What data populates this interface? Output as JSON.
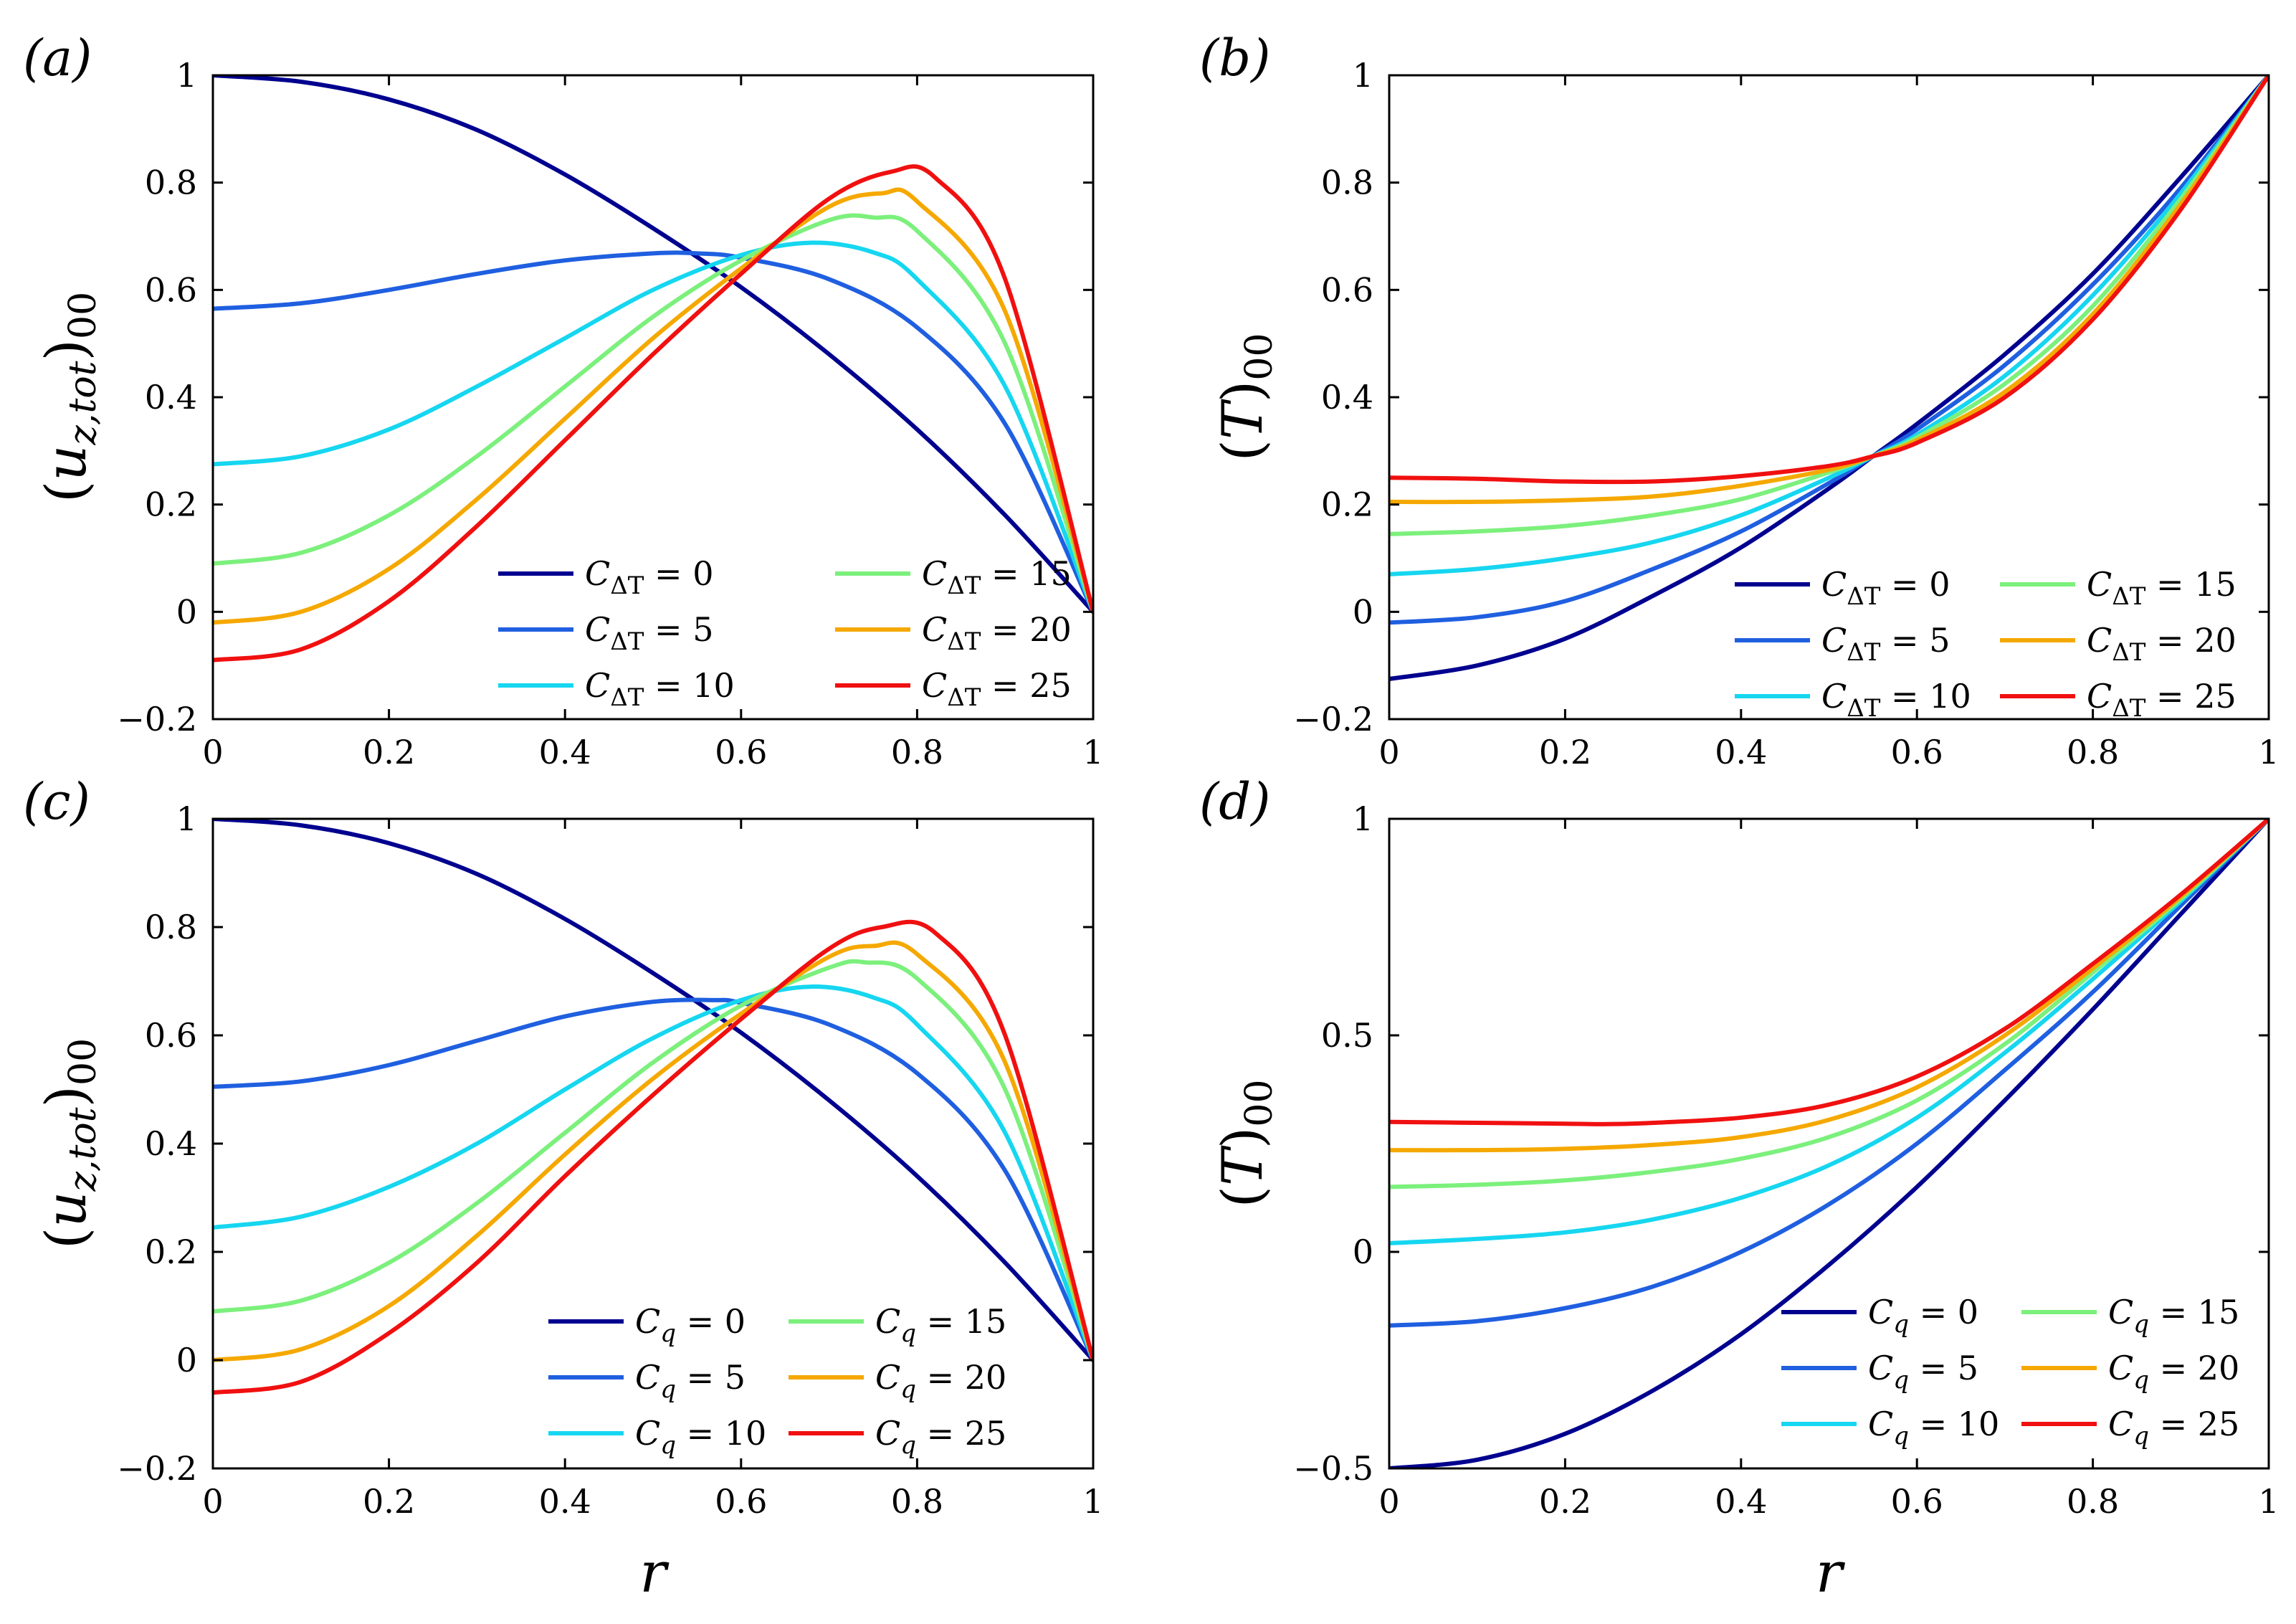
{
  "chart_data": [
    {
      "type": "line",
      "panel": "(a)",
      "xlabel": "",
      "ylabel": "(u_z,tot)00",
      "ylabel_parts": {
        "open": "(u",
        "sub": "z,tot",
        "close": ")",
        "sub2": "00"
      },
      "xlim": [
        0,
        1
      ],
      "ylim": [
        -0.2,
        1
      ],
      "xticks": [
        "0",
        "0.2",
        "0.4",
        "0.6",
        "0.8",
        "1"
      ],
      "yticks": [
        "−0.2",
        "0",
        "0.2",
        "0.4",
        "0.6",
        "0.8",
        "1"
      ],
      "legend_location": "lower-right",
      "legend_prefix": "C",
      "legend_sub": "ΔT",
      "series": [
        {
          "name": "0",
          "color": "#00008f",
          "x": [
            0,
            0.1,
            0.2,
            0.3,
            0.4,
            0.5,
            0.6,
            0.7,
            0.8,
            0.9,
            1.0
          ],
          "values": [
            1.0,
            0.988,
            0.955,
            0.898,
            0.815,
            0.715,
            0.605,
            0.48,
            0.34,
            0.18,
            0.0
          ]
        },
        {
          "name": "5",
          "color": "#1f5fe0",
          "x": [
            0,
            0.1,
            0.2,
            0.3,
            0.4,
            0.5,
            0.55,
            0.6,
            0.7,
            0.8,
            0.9,
            1.0
          ],
          "values": [
            0.565,
            0.575,
            0.6,
            0.63,
            0.655,
            0.668,
            0.668,
            0.66,
            0.62,
            0.53,
            0.35,
            0.0
          ]
        },
        {
          "name": "10",
          "color": "#16d6f0",
          "x": [
            0,
            0.1,
            0.2,
            0.3,
            0.4,
            0.5,
            0.6,
            0.68,
            0.75,
            0.8,
            0.9,
            1.0
          ],
          "values": [
            0.275,
            0.29,
            0.34,
            0.42,
            0.51,
            0.6,
            0.665,
            0.688,
            0.67,
            0.62,
            0.42,
            0.0
          ]
        },
        {
          "name": "15",
          "color": "#7cf07c",
          "x": [
            0,
            0.1,
            0.2,
            0.3,
            0.4,
            0.5,
            0.6,
            0.7,
            0.75,
            0.8,
            0.9,
            1.0
          ],
          "values": [
            0.09,
            0.11,
            0.18,
            0.29,
            0.42,
            0.55,
            0.655,
            0.73,
            0.735,
            0.71,
            0.5,
            0.0
          ]
        },
        {
          "name": "20",
          "color": "#f5a800",
          "x": [
            0,
            0.1,
            0.2,
            0.3,
            0.4,
            0.5,
            0.6,
            0.7,
            0.76,
            0.8,
            0.9,
            1.0
          ],
          "values": [
            -0.02,
            0.0,
            0.08,
            0.21,
            0.36,
            0.51,
            0.64,
            0.755,
            0.78,
            0.765,
            0.56,
            0.0
          ]
        },
        {
          "name": "25",
          "color": "#f01010",
          "x": [
            0,
            0.1,
            0.2,
            0.3,
            0.4,
            0.5,
            0.6,
            0.7,
            0.77,
            0.82,
            0.9,
            1.0
          ],
          "values": [
            -0.09,
            -0.07,
            0.02,
            0.16,
            0.32,
            0.48,
            0.63,
            0.77,
            0.82,
            0.81,
            0.62,
            0.0
          ]
        }
      ]
    },
    {
      "type": "line",
      "panel": "(b)",
      "xlabel": "",
      "ylabel": "(T)00",
      "ylabel_parts": {
        "open": "(",
        "main": "T",
        "close": ")",
        "sub2": "00"
      },
      "xlim": [
        0,
        1
      ],
      "ylim": [
        -0.2,
        1
      ],
      "xticks": [
        "0",
        "0.2",
        "0.4",
        "0.6",
        "0.8",
        "1"
      ],
      "yticks": [
        "−0.2",
        "0",
        "0.2",
        "0.4",
        "0.6",
        "0.8",
        "1"
      ],
      "legend_location": "lower-right",
      "legend_prefix": "C",
      "legend_sub": "ΔT",
      "series": [
        {
          "name": "0",
          "color": "#00008f",
          "x": [
            0,
            0.1,
            0.2,
            0.3,
            0.4,
            0.5,
            0.55,
            0.6,
            0.7,
            0.8,
            0.9,
            1.0
          ],
          "values": [
            -0.125,
            -0.1,
            -0.05,
            0.03,
            0.12,
            0.23,
            0.29,
            0.35,
            0.48,
            0.63,
            0.81,
            1.0
          ]
        },
        {
          "name": "5",
          "color": "#1f5fe0",
          "x": [
            0,
            0.1,
            0.2,
            0.3,
            0.4,
            0.5,
            0.55,
            0.6,
            0.7,
            0.8,
            0.9,
            1.0
          ],
          "values": [
            -0.02,
            -0.01,
            0.02,
            0.08,
            0.15,
            0.24,
            0.29,
            0.34,
            0.46,
            0.61,
            0.79,
            1.0
          ]
        },
        {
          "name": "10",
          "color": "#16d6f0",
          "x": [
            0,
            0.1,
            0.2,
            0.3,
            0.4,
            0.5,
            0.55,
            0.6,
            0.7,
            0.8,
            0.9,
            1.0
          ],
          "values": [
            0.07,
            0.08,
            0.1,
            0.13,
            0.18,
            0.25,
            0.29,
            0.33,
            0.44,
            0.59,
            0.78,
            1.0
          ]
        },
        {
          "name": "15",
          "color": "#7cf07c",
          "x": [
            0,
            0.1,
            0.2,
            0.3,
            0.4,
            0.5,
            0.55,
            0.6,
            0.7,
            0.8,
            0.9,
            1.0
          ],
          "values": [
            0.145,
            0.15,
            0.16,
            0.18,
            0.21,
            0.26,
            0.29,
            0.325,
            0.425,
            0.57,
            0.77,
            1.0
          ]
        },
        {
          "name": "20",
          "color": "#f5a800",
          "x": [
            0,
            0.1,
            0.2,
            0.3,
            0.4,
            0.5,
            0.55,
            0.6,
            0.7,
            0.8,
            0.9,
            1.0
          ],
          "values": [
            0.205,
            0.205,
            0.208,
            0.215,
            0.235,
            0.265,
            0.29,
            0.32,
            0.41,
            0.555,
            0.76,
            1.0
          ]
        },
        {
          "name": "25",
          "color": "#f01010",
          "x": [
            0,
            0.1,
            0.2,
            0.3,
            0.4,
            0.5,
            0.55,
            0.6,
            0.7,
            0.8,
            0.9,
            1.0
          ],
          "values": [
            0.25,
            0.248,
            0.243,
            0.243,
            0.253,
            0.272,
            0.29,
            0.315,
            0.4,
            0.545,
            0.75,
            1.0
          ]
        }
      ]
    },
    {
      "type": "line",
      "panel": "(c)",
      "xlabel": "r",
      "ylabel": "(u_z,tot)00",
      "ylabel_parts": {
        "open": "(u",
        "sub": "z,tot",
        "close": ")",
        "sub2": "00"
      },
      "xlim": [
        0,
        1
      ],
      "ylim": [
        -0.2,
        1
      ],
      "xticks": [
        "0",
        "0.2",
        "0.4",
        "0.6",
        "0.8",
        "1"
      ],
      "yticks": [
        "−0.2",
        "0",
        "0.2",
        "0.4",
        "0.6",
        "0.8",
        "1"
      ],
      "legend_location": "lower-right",
      "legend_prefix": "C",
      "legend_sub": "q",
      "series": [
        {
          "name": "0",
          "color": "#00008f",
          "x": [
            0,
            0.1,
            0.2,
            0.3,
            0.4,
            0.5,
            0.6,
            0.7,
            0.8,
            0.9,
            1.0
          ],
          "values": [
            1.0,
            0.988,
            0.955,
            0.898,
            0.815,
            0.715,
            0.605,
            0.48,
            0.34,
            0.18,
            0.0
          ]
        },
        {
          "name": "5",
          "color": "#1f5fe0",
          "x": [
            0,
            0.1,
            0.2,
            0.3,
            0.4,
            0.5,
            0.57,
            0.6,
            0.7,
            0.8,
            0.9,
            1.0
          ],
          "values": [
            0.505,
            0.515,
            0.545,
            0.59,
            0.635,
            0.662,
            0.665,
            0.66,
            0.62,
            0.53,
            0.35,
            0.0
          ]
        },
        {
          "name": "10",
          "color": "#16d6f0",
          "x": [
            0,
            0.1,
            0.2,
            0.3,
            0.4,
            0.5,
            0.6,
            0.68,
            0.75,
            0.8,
            0.9,
            1.0
          ],
          "values": [
            0.245,
            0.265,
            0.32,
            0.4,
            0.5,
            0.595,
            0.665,
            0.69,
            0.67,
            0.62,
            0.42,
            0.0
          ]
        },
        {
          "name": "15",
          "color": "#7cf07c",
          "x": [
            0,
            0.1,
            0.2,
            0.3,
            0.4,
            0.5,
            0.6,
            0.7,
            0.74,
            0.8,
            0.9,
            1.0
          ],
          "values": [
            0.09,
            0.11,
            0.18,
            0.29,
            0.42,
            0.55,
            0.655,
            0.725,
            0.735,
            0.705,
            0.5,
            0.0
          ]
        },
        {
          "name": "20",
          "color": "#f5a800",
          "x": [
            0,
            0.1,
            0.2,
            0.3,
            0.4,
            0.5,
            0.6,
            0.7,
            0.75,
            0.8,
            0.9,
            1.0
          ],
          "values": [
            0.0,
            0.02,
            0.1,
            0.23,
            0.38,
            0.52,
            0.64,
            0.745,
            0.765,
            0.75,
            0.55,
            0.0
          ]
        },
        {
          "name": "25",
          "color": "#f01010",
          "x": [
            0,
            0.1,
            0.2,
            0.3,
            0.4,
            0.5,
            0.6,
            0.7,
            0.76,
            0.82,
            0.9,
            1.0
          ],
          "values": [
            -0.06,
            -0.04,
            0.05,
            0.18,
            0.34,
            0.49,
            0.63,
            0.76,
            0.8,
            0.79,
            0.6,
            0.0
          ]
        }
      ]
    },
    {
      "type": "line",
      "panel": "(d)",
      "xlabel": "r",
      "ylabel": "(T)00",
      "ylabel_parts": {
        "open": "(",
        "main": "T",
        "close": ")",
        "sub2": "00"
      },
      "xlim": [
        0,
        1
      ],
      "ylim": [
        -0.5,
        1
      ],
      "xticks": [
        "0",
        "0.2",
        "0.4",
        "0.6",
        "0.8",
        "1"
      ],
      "yticks": [
        "−0.5",
        "0",
        "0.5",
        "1"
      ],
      "legend_location": "lower-right",
      "legend_prefix": "C",
      "legend_sub": "q",
      "series": [
        {
          "name": "0",
          "color": "#00008f",
          "x": [
            0,
            0.1,
            0.2,
            0.3,
            0.4,
            0.5,
            0.6,
            0.7,
            0.8,
            0.9,
            1.0
          ],
          "values": [
            -0.5,
            -0.48,
            -0.42,
            -0.32,
            -0.19,
            -0.03,
            0.15,
            0.35,
            0.56,
            0.78,
            1.0
          ]
        },
        {
          "name": "5",
          "color": "#1f5fe0",
          "x": [
            0,
            0.1,
            0.2,
            0.3,
            0.4,
            0.5,
            0.6,
            0.7,
            0.8,
            0.9,
            1.0
          ],
          "values": [
            -0.17,
            -0.16,
            -0.13,
            -0.08,
            0.0,
            0.11,
            0.25,
            0.42,
            0.6,
            0.8,
            1.0
          ]
        },
        {
          "name": "10",
          "color": "#16d6f0",
          "x": [
            0,
            0.1,
            0.2,
            0.3,
            0.4,
            0.5,
            0.6,
            0.7,
            0.8,
            0.9,
            1.0
          ],
          "values": [
            0.02,
            0.03,
            0.045,
            0.075,
            0.125,
            0.2,
            0.31,
            0.46,
            0.63,
            0.81,
            1.0
          ]
        },
        {
          "name": "15",
          "color": "#7cf07c",
          "x": [
            0,
            0.1,
            0.2,
            0.3,
            0.4,
            0.5,
            0.6,
            0.7,
            0.8,
            0.9,
            1.0
          ],
          "values": [
            0.15,
            0.155,
            0.165,
            0.185,
            0.215,
            0.265,
            0.35,
            0.48,
            0.645,
            0.815,
            1.0
          ]
        },
        {
          "name": "20",
          "color": "#f5a800",
          "x": [
            0,
            0.1,
            0.2,
            0.3,
            0.4,
            0.5,
            0.6,
            0.7,
            0.8,
            0.9,
            1.0
          ],
          "values": [
            0.235,
            0.235,
            0.238,
            0.247,
            0.265,
            0.305,
            0.38,
            0.5,
            0.655,
            0.82,
            1.0
          ]
        },
        {
          "name": "25",
          "color": "#f01010",
          "x": [
            0,
            0.1,
            0.2,
            0.25,
            0.3,
            0.4,
            0.5,
            0.6,
            0.7,
            0.8,
            0.9,
            1.0
          ],
          "values": [
            0.3,
            0.298,
            0.296,
            0.295,
            0.298,
            0.31,
            0.34,
            0.405,
            0.515,
            0.665,
            0.825,
            1.0
          ]
        }
      ]
    }
  ]
}
